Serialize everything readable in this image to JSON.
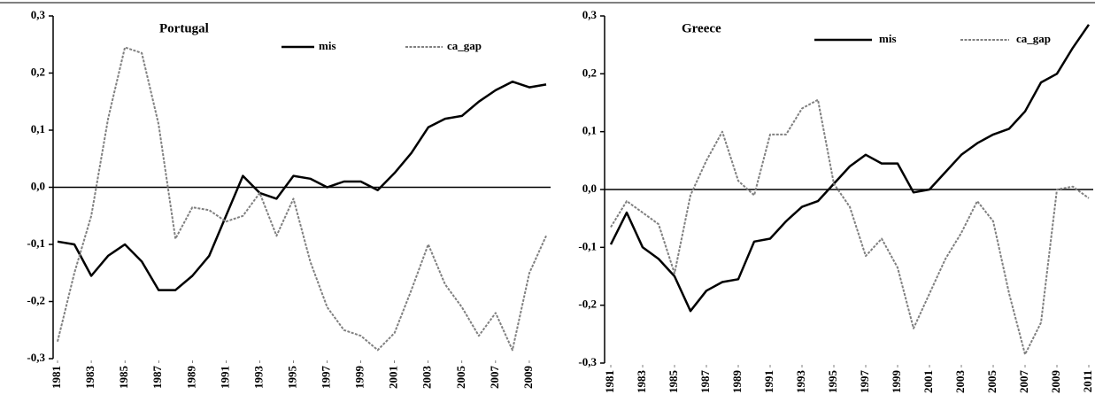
{
  "chart_data": [
    {
      "type": "line",
      "title": "Portugal",
      "x": [
        1981,
        1982,
        1983,
        1984,
        1985,
        1986,
        1987,
        1988,
        1989,
        1990,
        1991,
        1992,
        1993,
        1994,
        1995,
        1996,
        1997,
        1998,
        1999,
        2000,
        2001,
        2002,
        2003,
        2004,
        2005,
        2006,
        2007,
        2008,
        2009,
        2010
      ],
      "series": [
        {
          "name": "mis",
          "color": "#000000",
          "dash": false,
          "values": [
            -0.095,
            -0.1,
            -0.155,
            -0.12,
            -0.1,
            -0.13,
            -0.18,
            -0.18,
            -0.155,
            -0.12,
            -0.05,
            0.02,
            -0.01,
            -0.02,
            0.02,
            0.015,
            0.0,
            0.01,
            0.01,
            -0.005,
            0.025,
            0.06,
            0.105,
            0.12,
            0.125,
            0.15,
            0.17,
            0.185,
            0.175,
            0.18
          ]
        },
        {
          "name": "ca_gap",
          "color": "#808080",
          "dash": true,
          "values": [
            -0.27,
            -0.15,
            -0.05,
            0.12,
            0.245,
            0.235,
            0.11,
            -0.09,
            -0.035,
            -0.04,
            -0.06,
            -0.05,
            -0.01,
            -0.085,
            -0.02,
            -0.13,
            -0.21,
            -0.25,
            -0.26,
            -0.285,
            -0.255,
            -0.18,
            -0.1,
            -0.17,
            -0.21,
            -0.26,
            -0.22,
            -0.285,
            -0.15,
            -0.085
          ]
        }
      ],
      "xlim": [
        1981,
        2010
      ],
      "xticks": [
        1981,
        1983,
        1985,
        1987,
        1989,
        1991,
        1993,
        1995,
        1997,
        1999,
        2001,
        2003,
        2005,
        2007,
        2009
      ],
      "ylim": [
        -0.3,
        0.3
      ],
      "yticks": [
        {
          "value": 0.3,
          "label": "0,3"
        },
        {
          "value": 0.2,
          "label": "0,2"
        },
        {
          "value": 0.1,
          "label": "0,1"
        },
        {
          "value": 0,
          "label": "0,0"
        },
        {
          "value": -0.1,
          "label": "-0,1"
        },
        {
          "value": -0.2,
          "label": "-0,2"
        },
        {
          "value": -0.3,
          "label": "-0,3"
        }
      ]
    },
    {
      "type": "line",
      "title": "Greece",
      "x": [
        1981,
        1982,
        1983,
        1984,
        1985,
        1986,
        1987,
        1988,
        1989,
        1990,
        1991,
        1992,
        1993,
        1994,
        1995,
        1996,
        1997,
        1998,
        1999,
        2000,
        2001,
        2002,
        2003,
        2004,
        2005,
        2006,
        2007,
        2008,
        2009,
        2010,
        2011
      ],
      "series": [
        {
          "name": "mis",
          "color": "#000000",
          "dash": false,
          "values": [
            -0.095,
            -0.04,
            -0.1,
            -0.12,
            -0.15,
            -0.21,
            -0.175,
            -0.16,
            -0.155,
            -0.09,
            -0.085,
            -0.055,
            -0.03,
            -0.02,
            0.01,
            0.04,
            0.06,
            0.045,
            0.045,
            -0.005,
            0.0,
            0.03,
            0.06,
            0.08,
            0.095,
            0.105,
            0.135,
            0.185,
            0.2,
            0.245,
            0.285
          ]
        },
        {
          "name": "ca_gap",
          "color": "#808080",
          "dash": true,
          "values": [
            -0.065,
            -0.02,
            -0.04,
            -0.06,
            -0.145,
            -0.01,
            0.05,
            0.1,
            0.015,
            -0.01,
            0.095,
            0.095,
            0.14,
            0.155,
            0.01,
            -0.03,
            -0.115,
            -0.085,
            -0.135,
            -0.24,
            -0.18,
            -0.12,
            -0.075,
            -0.02,
            -0.055,
            -0.18,
            -0.285,
            -0.23,
            0.0,
            0.005,
            -0.015
          ]
        }
      ],
      "xlim": [
        1981,
        2011
      ],
      "xticks": [
        1981,
        1983,
        1985,
        1987,
        1989,
        1991,
        1993,
        1995,
        1997,
        1999,
        2001,
        2003,
        2005,
        2007,
        2009,
        2011
      ],
      "ylim": [
        -0.3,
        0.3
      ],
      "yticks": [
        {
          "value": 0.3,
          "label": "0,3"
        },
        {
          "value": 0.2,
          "label": "0,2"
        },
        {
          "value": 0.1,
          "label": "0,1"
        },
        {
          "value": 0,
          "label": "0,0"
        },
        {
          "value": -0.1,
          "label": "-0,1"
        },
        {
          "value": -0.2,
          "label": "-0,2"
        },
        {
          "value": -0.3,
          "label": "-0,3"
        }
      ]
    }
  ]
}
